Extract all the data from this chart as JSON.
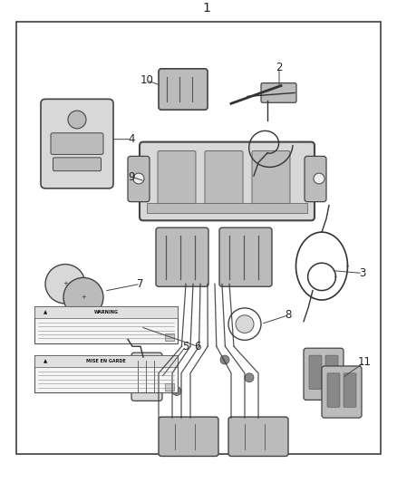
{
  "title": "1",
  "bg_color": "#ffffff",
  "border_color": "#404040",
  "text_color": "#222222",
  "fig_width": 4.38,
  "fig_height": 5.33,
  "dpi": 100,
  "border": [
    0.04,
    0.03,
    0.92,
    0.91
  ],
  "label_fontsize": 8.5,
  "part_color_light": "#d8d8d8",
  "part_color_mid": "#bbbbbb",
  "part_color_dark": "#888888",
  "wire_color": "#333333"
}
